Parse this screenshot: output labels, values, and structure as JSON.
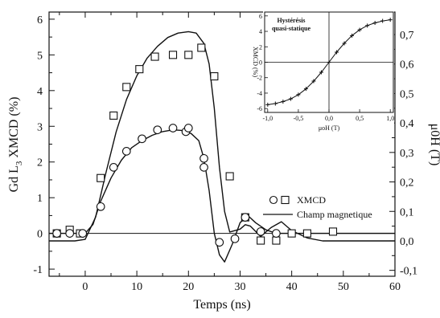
{
  "chart_data": [
    {
      "type": "scatter",
      "title": "",
      "xlabel": "Temps (ns)",
      "ylabel": "Gd L3 XMCD (%)",
      "ylabel_main": "Gd L",
      "ylabel_sub": "3",
      "ylabel_rest": " XMCD (%)",
      "y2label": "μ0H (T)",
      "xlim": [
        -7,
        60
      ],
      "ylim": [
        -1.2,
        6.2
      ],
      "y2lim": [
        -0.12,
        0.7764
      ],
      "xticks": [
        "0",
        "10",
        "20",
        "30",
        "40",
        "50",
        "60"
      ],
      "yticks": [
        "-1",
        "0",
        "1",
        "2",
        "3",
        "4",
        "5",
        "6"
      ],
      "y2ticks": [
        "-0,1",
        "0,0",
        "0,1",
        "0,2",
        "0,3",
        "0,4",
        "0,5",
        "0,6",
        "0,7"
      ],
      "legend": {
        "position": "center-right",
        "markers_label": "XMCD",
        "line_label": "Champ magnetique"
      },
      "series": [
        {
          "name": "XMCD",
          "marker": "square",
          "x": [
            -5.5,
            -3,
            -1,
            3,
            5.5,
            8,
            10.5,
            13.5,
            17,
            20,
            22.5,
            25,
            28,
            31,
            34,
            37,
            40,
            43,
            48
          ],
          "y": [
            0,
            0.1,
            0,
            1.55,
            3.3,
            4.1,
            4.6,
            4.95,
            5.0,
            5.0,
            5.2,
            4.4,
            1.6,
            0.45,
            -0.2,
            -0.2,
            0.0,
            0.0,
            0.05
          ]
        },
        {
          "name": "XMCD",
          "marker": "circle",
          "x": [
            -5.5,
            -3,
            -0.5,
            3,
            5.5,
            8,
            11,
            14,
            17,
            19.5,
            20,
            23,
            23,
            26,
            29,
            31,
            34,
            37
          ],
          "y": [
            0,
            0,
            0,
            0.75,
            1.85,
            2.3,
            2.65,
            2.9,
            2.95,
            2.85,
            2.95,
            2.1,
            1.85,
            -0.25,
            -0.15,
            0.45,
            0.05,
            0.0
          ]
        },
        {
          "name": "Champ magnetique",
          "style": "line",
          "x": [
            -7,
            -2,
            0,
            2,
            4,
            6,
            8,
            10,
            12,
            14,
            16,
            18,
            20,
            21.5,
            23,
            24,
            25,
            26,
            27,
            28,
            30,
            31,
            32,
            34,
            36,
            38,
            40,
            43,
            46,
            50,
            55,
            60
          ],
          "y2": [
            0,
            0,
            0.005,
            0.08,
            0.23,
            0.37,
            0.48,
            0.56,
            0.62,
            0.66,
            0.69,
            0.705,
            0.71,
            0.705,
            0.67,
            0.6,
            0.45,
            0.25,
            0.1,
            0.03,
            0.04,
            0.055,
            0.05,
            0.015,
            0.045,
            0.065,
            0.035,
            0.01,
            0.0,
            0.0,
            0.0,
            0.0
          ]
        },
        {
          "name": "",
          "style": "line",
          "x": [
            -7,
            -2,
            0,
            1.5,
            3,
            5,
            7,
            9,
            11,
            13,
            15,
            17,
            19,
            20.5,
            22,
            23,
            24,
            25,
            26,
            27,
            28.5,
            30,
            31.5,
            33,
            35,
            37,
            39,
            41,
            45,
            50,
            55,
            60
          ],
          "y": [
            0,
            0,
            0,
            0.25,
            0.9,
            1.55,
            2.05,
            2.4,
            2.6,
            2.75,
            2.85,
            2.9,
            2.88,
            2.8,
            2.6,
            2.1,
            1.2,
            0.0,
            -0.6,
            -0.8,
            -0.3,
            0.3,
            0.5,
            0.3,
            0.1,
            0.0,
            0.0,
            0.0,
            0.0,
            0.0,
            0.0,
            0.0
          ]
        }
      ]
    },
    {
      "type": "line",
      "title": "Hystérésis quasi-statique",
      "title_line1": "Hystérésis",
      "title_line2": "quasi-statique",
      "xlabel": "μoH (T)",
      "ylabel": "XMCD (%)",
      "xlim": [
        -1.05,
        1.05
      ],
      "ylim": [
        -6.5,
        6.5
      ],
      "xticks": [
        "-1,0",
        "-0,5",
        "0,0",
        "0,5",
        "1,0"
      ],
      "yticks": [
        "-6",
        "-4",
        "-2",
        "0",
        "2",
        "4",
        "6"
      ],
      "series": [
        {
          "name": "",
          "marker": "plus",
          "x": [
            -1.0,
            -0.875,
            -0.75,
            -0.625,
            -0.5,
            -0.375,
            -0.25,
            -0.125,
            0.0,
            0.125,
            0.25,
            0.375,
            0.5,
            0.625,
            0.75,
            0.875,
            1.0
          ],
          "y": [
            -5.5,
            -5.35,
            -5.1,
            -4.75,
            -4.2,
            -3.45,
            -2.45,
            -1.3,
            0.0,
            1.3,
            2.45,
            3.45,
            4.2,
            4.75,
            5.1,
            5.35,
            5.5
          ]
        }
      ]
    }
  ]
}
